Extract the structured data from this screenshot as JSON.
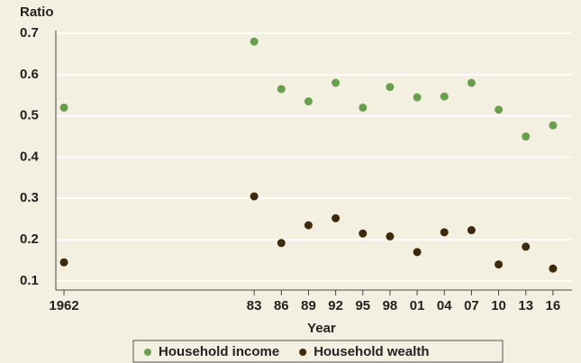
{
  "chart_data": {
    "type": "scatter",
    "y_label": "Ratio",
    "x_label": "Year",
    "x": [
      1962,
      1983,
      1986,
      1989,
      1992,
      1995,
      1998,
      2001,
      2004,
      2007,
      2010,
      2013,
      2016
    ],
    "series": [
      {
        "name": "Household income",
        "color": "#6a9e4f",
        "values": [
          0.52,
          0.68,
          0.565,
          0.535,
          0.58,
          0.52,
          0.57,
          0.545,
          0.547,
          0.58,
          0.515,
          0.45,
          0.477
        ]
      },
      {
        "name": "Household wealth",
        "color": "#3d2a0d",
        "values": [
          0.145,
          0.305,
          0.192,
          0.235,
          0.252,
          0.215,
          0.208,
          0.17,
          0.218,
          0.223,
          0.14,
          0.183,
          0.13
        ]
      }
    ],
    "xlim": [
      1961.1,
      2018.1
    ],
    "xticks": [
      1962,
      {
        "value": 1983,
        "label": "83"
      },
      {
        "value": 1986,
        "label": "86"
      },
      {
        "value": 1989,
        "label": "89"
      },
      {
        "value": 1992,
        "label": "92"
      },
      {
        "value": 1995,
        "label": "95"
      },
      {
        "value": 1998,
        "label": "98"
      },
      {
        "value": 2001,
        "label": "01"
      },
      {
        "value": 2004,
        "label": "04"
      },
      {
        "value": 2007,
        "label": "07"
      },
      {
        "value": 2010,
        "label": "10"
      },
      {
        "value": 2013,
        "label": "13"
      },
      {
        "value": 2016,
        "label": "16"
      }
    ],
    "ylim": [
      0.078,
      0.7
    ],
    "yticks": [
      0.1,
      0.2,
      0.3,
      0.4,
      0.5,
      0.6,
      0.7
    ],
    "grid": true,
    "legend": "bottom"
  }
}
